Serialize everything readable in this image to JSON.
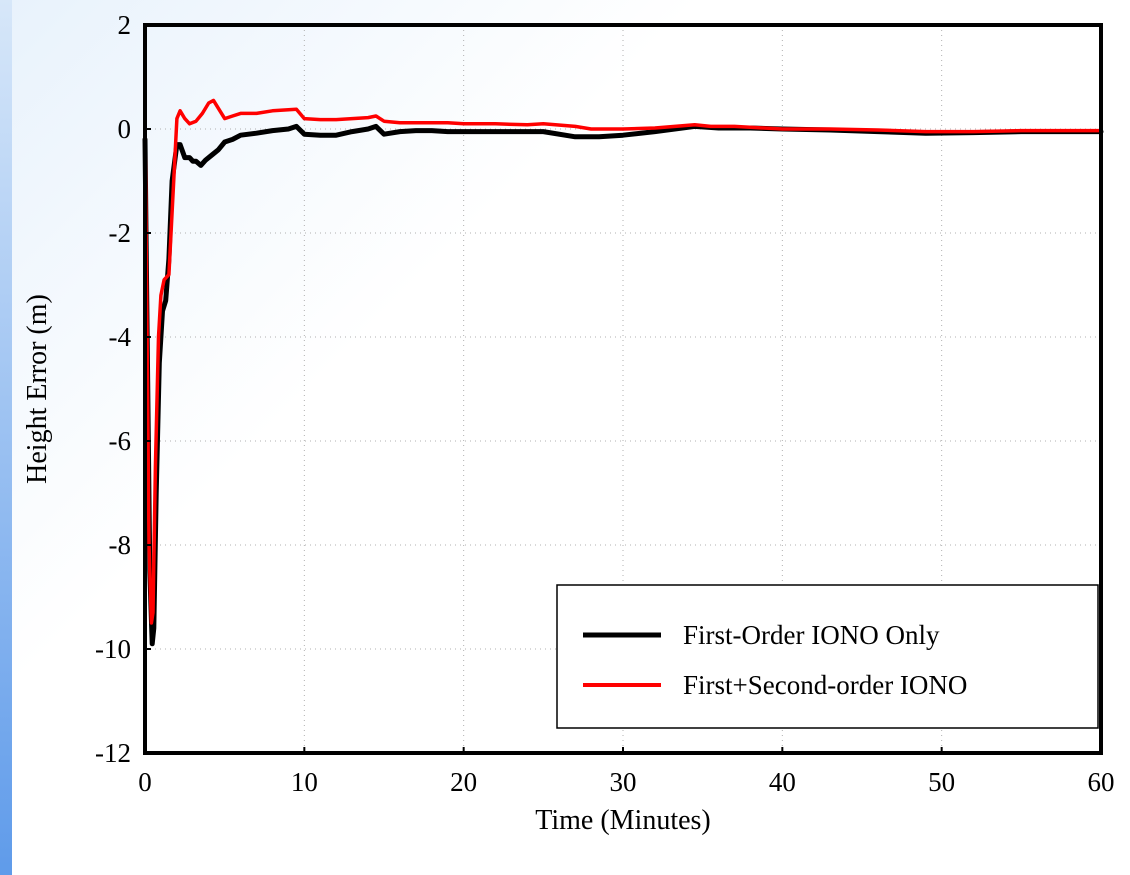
{
  "chart_data": {
    "type": "line",
    "xlabel": "Time (Minutes)",
    "ylabel": "Height Error (m)",
    "xlim": [
      0,
      60
    ],
    "ylim": [
      -12,
      2
    ],
    "xticks": [
      0,
      10,
      20,
      30,
      40,
      50,
      60
    ],
    "yticks": [
      2,
      0,
      -2,
      -4,
      -6,
      -8,
      -10,
      -12
    ],
    "xtick_labels": [
      "0",
      "10",
      "20",
      "30",
      "40",
      "50",
      "60"
    ],
    "ytick_labels": [
      "2",
      "0",
      "-2",
      "-4",
      "-6",
      "-8",
      "-10",
      "-12"
    ],
    "grid": true,
    "legend_position": "bottom-right",
    "series": [
      {
        "name": "First-Order IONO Only",
        "color": "#000000",
        "x": [
          0,
          0.1,
          0.3,
          0.45,
          0.55,
          0.7,
          0.9,
          1.1,
          1.3,
          1.5,
          1.7,
          2.0,
          2.2,
          2.5,
          2.8,
          3.0,
          3.2,
          3.5,
          3.8,
          4.2,
          4.6,
          5.0,
          5.5,
          6.0,
          7.0,
          8.0,
          9.0,
          9.5,
          10.0,
          11.0,
          12.0,
          13.0,
          14.0,
          14.5,
          15.0,
          16.0,
          17.0,
          18.0,
          19.0,
          20.0,
          22.0,
          25.0,
          27.0,
          28.5,
          30.0,
          32.0,
          34.5,
          36.0,
          38.0,
          40.0,
          43.0,
          46.0,
          49.0,
          52.0,
          55.0,
          58.0,
          60.0
        ],
        "y": [
          -0.2,
          -3.0,
          -8.5,
          -9.9,
          -9.6,
          -7.0,
          -4.5,
          -3.5,
          -3.3,
          -2.5,
          -1.0,
          -0.3,
          -0.3,
          -0.55,
          -0.55,
          -0.62,
          -0.62,
          -0.7,
          -0.6,
          -0.5,
          -0.4,
          -0.25,
          -0.2,
          -0.12,
          -0.08,
          -0.03,
          0.0,
          0.05,
          -0.1,
          -0.12,
          -0.12,
          -0.05,
          0.0,
          0.05,
          -0.1,
          -0.05,
          -0.03,
          -0.03,
          -0.05,
          -0.05,
          -0.05,
          -0.05,
          -0.15,
          -0.15,
          -0.12,
          -0.05,
          0.05,
          0.02,
          0.02,
          0.0,
          -0.02,
          -0.05,
          -0.08,
          -0.07,
          -0.05,
          -0.05,
          -0.05
        ]
      },
      {
        "name": "First+Second-order IONO",
        "color": "#ff0000",
        "x": [
          0,
          0.1,
          0.25,
          0.4,
          0.5,
          0.65,
          0.85,
          1.0,
          1.2,
          1.5,
          1.8,
          2.0,
          2.2,
          2.5,
          2.8,
          3.2,
          3.6,
          4.0,
          4.3,
          4.7,
          5.0,
          5.5,
          6.0,
          7.0,
          8.0,
          9.0,
          9.5,
          10.0,
          11.0,
          12.0,
          13.0,
          14.0,
          14.5,
          15.0,
          16.0,
          17.0,
          19.0,
          20.0,
          22.0,
          24.0,
          25.0,
          27.0,
          28.0,
          30.0,
          32.0,
          34.5,
          35.5,
          37.0,
          40.0,
          43.0,
          46.0,
          49.0,
          52.0,
          55.0,
          58.0,
          60.0
        ],
        "y": [
          0.0,
          -3.0,
          -8.0,
          -9.5,
          -9.3,
          -6.5,
          -4.0,
          -3.2,
          -2.9,
          -2.8,
          -1.0,
          0.2,
          0.35,
          0.2,
          0.1,
          0.15,
          0.3,
          0.5,
          0.55,
          0.35,
          0.2,
          0.25,
          0.3,
          0.3,
          0.35,
          0.37,
          0.38,
          0.2,
          0.18,
          0.18,
          0.2,
          0.22,
          0.25,
          0.15,
          0.12,
          0.12,
          0.12,
          0.1,
          0.1,
          0.08,
          0.1,
          0.05,
          0.0,
          0.0,
          0.02,
          0.08,
          0.05,
          0.05,
          0.0,
          0.0,
          -0.02,
          -0.05,
          -0.05,
          -0.03,
          -0.03,
          -0.03
        ]
      }
    ]
  }
}
